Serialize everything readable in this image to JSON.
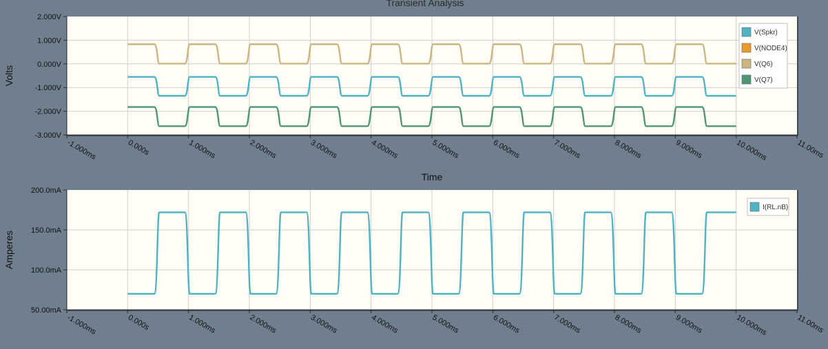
{
  "title": "Transient Analysis",
  "colors": {
    "background": "#6f7f8e",
    "plot_bg": "#fffdf6",
    "grid": "#cfcfcf",
    "spkr": "#4fb3c3",
    "node4": "#e89a2c",
    "q6": "#cbb680",
    "q7": "#4e9676",
    "irl": "#4fb3c3"
  },
  "chart_data": [
    {
      "type": "line",
      "title": "Transient Analysis",
      "xlabel": "Time",
      "ylabel": "Volts",
      "xlim": [
        -1,
        11
      ],
      "ylim": [
        -3,
        2
      ],
      "x_ticks": [
        "-1.000ms",
        "0.000s",
        "1.000ms",
        "2.000ms",
        "3.000ms",
        "4.000ms",
        "5.000ms",
        "6.000ms",
        "7.000ms",
        "8.000ms",
        "9.000ms",
        "10.000ms",
        "11.00ms"
      ],
      "y_ticks": [
        "2.000V",
        "1.000V",
        "0.000V",
        "-1.000V",
        "-2.000V",
        "-3.000V"
      ],
      "grid": true,
      "legend_position": "top-right",
      "series": [
        {
          "name": "V(Spkr)",
          "color_key": "spkr",
          "period_ms": 1.0,
          "duty": 0.5,
          "t_end_ms": 10,
          "high": -0.55,
          "low": -1.35,
          "start": "high"
        },
        {
          "name": "V(NODE4)",
          "color_key": "node4",
          "hidden": true
        },
        {
          "name": "V(Q6)",
          "color_key": "q6",
          "period_ms": 1.0,
          "duty": 0.5,
          "t_end_ms": 10,
          "high": 0.83,
          "low": 0.01,
          "start": "high"
        },
        {
          "name": "V(Q7)",
          "color_key": "q7",
          "period_ms": 1.0,
          "duty": 0.5,
          "t_end_ms": 10,
          "high": -1.82,
          "low": -2.63,
          "start": "high"
        }
      ]
    },
    {
      "type": "line",
      "title": "",
      "xlabel": "",
      "ylabel": "Amperes",
      "xlim": [
        -1,
        11
      ],
      "ylim": [
        50,
        200
      ],
      "x_ticks": [
        "-1.000ms",
        "0.000s",
        "1.000ms",
        "2.000ms",
        "3.000ms",
        "4.000ms",
        "5.000ms",
        "6.000ms",
        "7.000ms",
        "8.000ms",
        "9.000ms",
        "10.000ms",
        "11.00ms"
      ],
      "y_ticks": [
        "200.0mA",
        "150.0mA",
        "100.0mA",
        "50.00mA"
      ],
      "grid": true,
      "legend_position": "top-right",
      "series": [
        {
          "name": "I(RL.nB)",
          "color_key": "irl",
          "period_ms": 1.0,
          "duty": 0.5,
          "t_end_ms": 10,
          "high": 172,
          "low": 70,
          "start": "low"
        }
      ]
    }
  ]
}
